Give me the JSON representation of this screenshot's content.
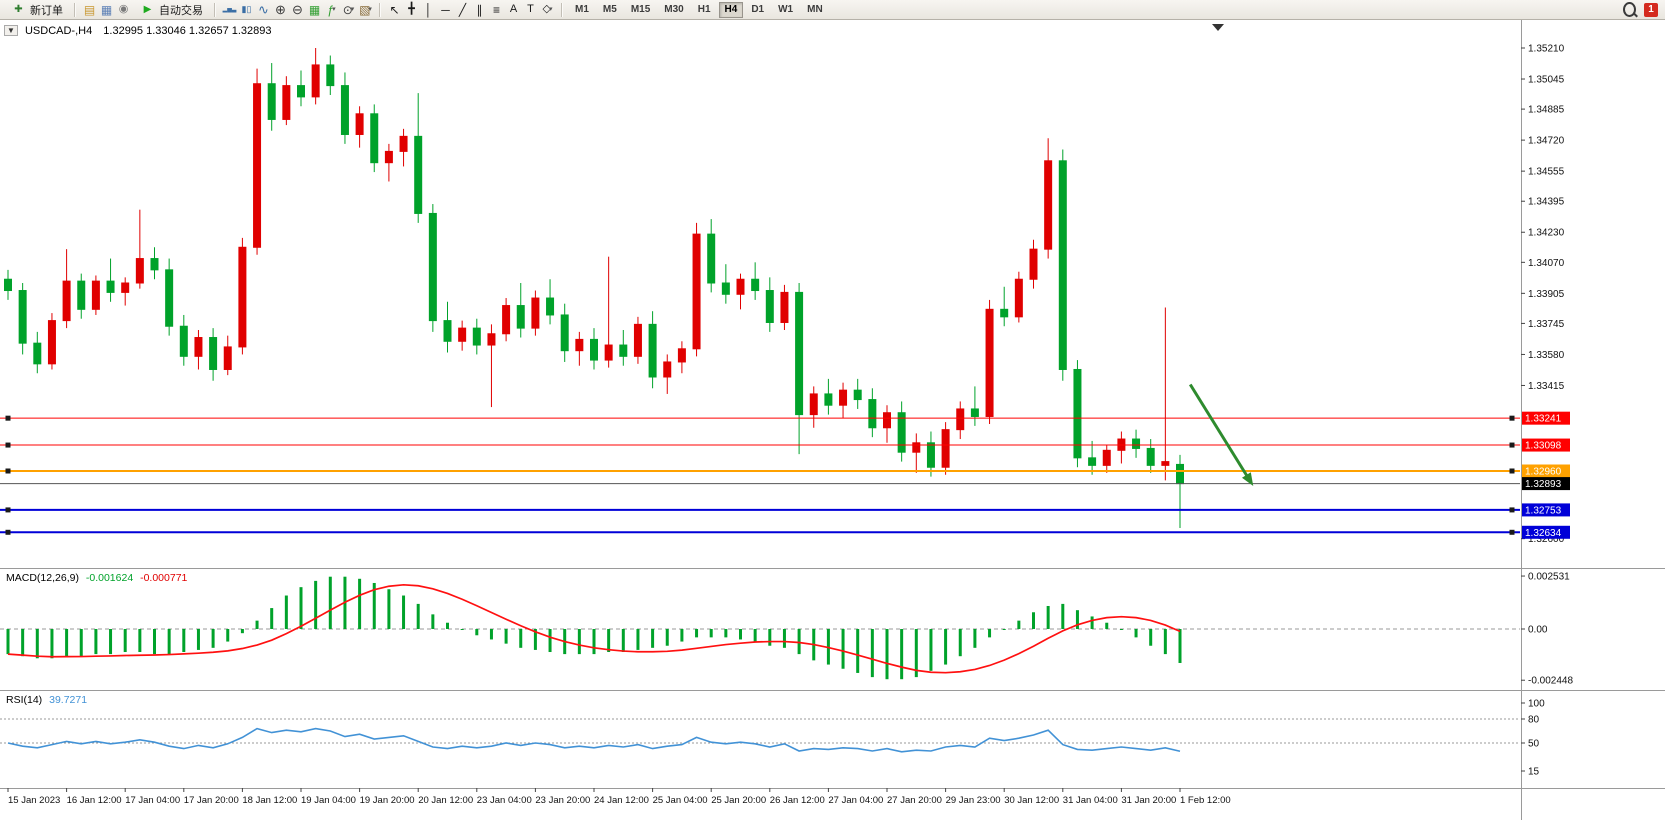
{
  "toolbar": {
    "new_order_label": "新订单",
    "autotrading_label": "自动交易",
    "collapse_glyph": "▼",
    "left_icons": [
      {
        "name": "new-chart-icon",
        "glyph": "▤",
        "color": "#c8962e",
        "size": 12
      },
      {
        "name": "profiles-icon",
        "glyph": "▦",
        "color": "#5b7fb5",
        "size": 12
      },
      {
        "name": "signals-icon",
        "glyph": "◉",
        "color": "#7a7a7a",
        "size": 11
      }
    ],
    "autotrading_icon": {
      "name": "autotrading-icon",
      "glyph": "▶",
      "color": "#1faa1f",
      "size": 10
    },
    "chart_icons": [
      {
        "name": "bar-chart-icon",
        "glyph": "▂▅▃",
        "color": "#3a6ea5",
        "size": 6
      },
      {
        "name": "candlestick-chart-icon",
        "glyph": "▮▯",
        "color": "#3a6ea5",
        "size": 9
      },
      {
        "name": "line-chart-icon",
        "glyph": "∿",
        "color": "#3a6ea5",
        "size": 13
      },
      {
        "name": "zoom-in-icon",
        "glyph": "⊕",
        "color": "#3c3c3c",
        "size": 13
      },
      {
        "name": "zoom-out-icon",
        "glyph": "⊖",
        "color": "#3c3c3c",
        "size": 13
      },
      {
        "name": "tile-windows-icon",
        "glyph": "▦",
        "color": "#2f9e2f",
        "size": 12
      },
      {
        "name": "indicators-icon",
        "glyph": "ƒ",
        "color": "#2f9e2f",
        "size": 12,
        "caret": true
      },
      {
        "name": "periods-icon",
        "glyph": "⊙",
        "color": "#3c3c3c",
        "size": 12,
        "caret": true
      },
      {
        "name": "templates-icon",
        "glyph": "▧",
        "color": "#8a6d3b",
        "size": 12,
        "caret": true
      }
    ],
    "draw_icons": [
      {
        "name": "cursor-icon",
        "glyph": "↖",
        "color": "#1a1a1a",
        "size": 12
      },
      {
        "name": "crosshair-icon",
        "glyph": "╋",
        "color": "#1a1a1a",
        "size": 11
      },
      {
        "name": "vertical-line-icon",
        "glyph": "│",
        "color": "#1a1a1a",
        "size": 12
      },
      {
        "name": "horizontal-line-icon",
        "glyph": "─",
        "color": "#1a1a1a",
        "size": 12
      },
      {
        "name": "trendline-icon",
        "glyph": "╱",
        "color": "#1a1a1a",
        "size": 12
      },
      {
        "name": "equidistant-channel-icon",
        "glyph": "∥",
        "color": "#1a1a1a",
        "size": 12
      },
      {
        "name": "fibonacci-icon",
        "glyph": "≡",
        "color": "#1a1a1a",
        "size": 12
      },
      {
        "name": "text-icon",
        "glyph": "A",
        "color": "#1a1a1a",
        "size": 11
      },
      {
        "name": "text-label-icon",
        "glyph": "T",
        "color": "#1a1a1a",
        "size": 11
      },
      {
        "name": "shapes-icon",
        "glyph": "◇",
        "color": "#1a1a1a",
        "size": 11,
        "caret": true
      }
    ],
    "timeframes": [
      "M1",
      "M5",
      "M15",
      "M30",
      "H1",
      "H4",
      "D1",
      "W1",
      "MN"
    ],
    "active_timeframe": "H4",
    "notification_count": "1"
  },
  "chart": {
    "symbol_period": "USDCAD-,H4",
    "ohlc_text": "1.32995 1.33046 1.32657 1.32893",
    "price_axis_labels": [
      {
        "text": "1.35210",
        "value": 1.3521
      },
      {
        "text": "1.35045",
        "value": 1.35045
      },
      {
        "text": "1.34885",
        "value": 1.34885
      },
      {
        "text": "1.34720",
        "value": 1.3472
      },
      {
        "text": "1.34555",
        "value": 1.34555
      },
      {
        "text": "1.34395",
        "value": 1.34395
      },
      {
        "text": "1.34230",
        "value": 1.3423
      },
      {
        "text": "1.34070",
        "value": 1.3407
      },
      {
        "text": "1.33905",
        "value": 1.33905
      },
      {
        "text": "1.33745",
        "value": 1.33745
      },
      {
        "text": "1.33580",
        "value": 1.3358
      },
      {
        "text": "1.33415",
        "value": 1.33415
      },
      {
        "text": "1.32600",
        "value": 1.326
      }
    ],
    "hlines": [
      {
        "label": "1.33241",
        "value": 1.33241,
        "color": "#ff0000",
        "width": 1
      },
      {
        "label": "1.33098",
        "value": 1.33098,
        "color": "#ff0000",
        "width": 1
      },
      {
        "label": "1.32960",
        "value": 1.3296,
        "color": "#ffa100",
        "width": 2
      },
      {
        "label": "1.32753",
        "value": 1.32753,
        "color": "#0000d8",
        "width": 2
      },
      {
        "label": "1.32634",
        "value": 1.32634,
        "color": "#0000d8",
        "width": 2
      }
    ],
    "price_marker": {
      "label": "1.32893",
      "value": 1.32893,
      "line_color": "#555555",
      "badge_color": "#000000"
    },
    "arrow": {
      "from_bar": 80.7,
      "from_price": 1.3342,
      "to_bar": 85.0,
      "to_price": 1.3288,
      "color": "#2e8b2e"
    },
    "time_labels": [
      {
        "text": "15 Jan 2023",
        "bar": 0
      },
      {
        "text": "16 Jan 12:00",
        "bar": 4
      },
      {
        "text": "17 Jan 04:00",
        "bar": 8
      },
      {
        "text": "17 Jan 20:00",
        "bar": 12
      },
      {
        "text": "18 Jan 12:00",
        "bar": 16
      },
      {
        "text": "19 Jan 04:00",
        "bar": 20
      },
      {
        "text": "19 Jan 20:00",
        "bar": 24
      },
      {
        "text": "20 Jan 12:00",
        "bar": 28
      },
      {
        "text": "23 Jan 04:00",
        "bar": 32
      },
      {
        "text": "23 Jan 20:00",
        "bar": 36
      },
      {
        "text": "24 Jan 12:00",
        "bar": 40
      },
      {
        "text": "25 Jan 04:00",
        "bar": 44
      },
      {
        "text": "25 Jan 20:00",
        "bar": 48
      },
      {
        "text": "26 Jan 12:00",
        "bar": 52
      },
      {
        "text": "27 Jan 04:00",
        "bar": 56
      },
      {
        "text": "27 Jan 20:00",
        "bar": 60
      },
      {
        "text": "29 Jan 23:00",
        "bar": 64
      },
      {
        "text": "30 Jan 12:00",
        "bar": 68
      },
      {
        "text": "31 Jan 04:00",
        "bar": 72
      },
      {
        "text": "31 Jan 20:00",
        "bar": 76
      },
      {
        "text": "1 Feb 12:00",
        "bar": 80
      }
    ],
    "colors": {
      "bull": "#e00000",
      "bear": "#00a22a"
    }
  },
  "chart_data": {
    "type": "candlestick",
    "symbol": "USDCAD-",
    "timeframe": "H4",
    "candles": [
      [
        1.3398,
        1.3403,
        1.3387,
        1.3392
      ],
      [
        1.3392,
        1.3396,
        1.3358,
        1.3364
      ],
      [
        1.3364,
        1.337,
        1.3348,
        1.3353
      ],
      [
        1.3353,
        1.338,
        1.335,
        1.3376
      ],
      [
        1.3376,
        1.3414,
        1.3372,
        1.3397
      ],
      [
        1.3397,
        1.3401,
        1.3377,
        1.3382
      ],
      [
        1.3382,
        1.34,
        1.3379,
        1.3397
      ],
      [
        1.3397,
        1.3409,
        1.3386,
        1.3391
      ],
      [
        1.3391,
        1.3399,
        1.3384,
        1.3396
      ],
      [
        1.3396,
        1.3435,
        1.3393,
        1.3409
      ],
      [
        1.3409,
        1.3415,
        1.3398,
        1.3403
      ],
      [
        1.3403,
        1.3409,
        1.3368,
        1.3373
      ],
      [
        1.3373,
        1.3379,
        1.3352,
        1.3357
      ],
      [
        1.3357,
        1.3371,
        1.335,
        1.3367
      ],
      [
        1.3367,
        1.3372,
        1.3344,
        1.335
      ],
      [
        1.335,
        1.3368,
        1.3347,
        1.3362
      ],
      [
        1.3362,
        1.342,
        1.3358,
        1.3415
      ],
      [
        1.3415,
        1.351,
        1.3411,
        1.3502
      ],
      [
        1.3502,
        1.3513,
        1.3477,
        1.3483
      ],
      [
        1.3483,
        1.3506,
        1.348,
        1.3501
      ],
      [
        1.3501,
        1.3509,
        1.349,
        1.3495
      ],
      [
        1.3495,
        1.3521,
        1.3491,
        1.3512
      ],
      [
        1.3512,
        1.3517,
        1.3496,
        1.3501
      ],
      [
        1.3501,
        1.3508,
        1.347,
        1.3475
      ],
      [
        1.3475,
        1.349,
        1.3468,
        1.3486
      ],
      [
        1.3486,
        1.3491,
        1.3455,
        1.346
      ],
      [
        1.346,
        1.347,
        1.345,
        1.3466
      ],
      [
        1.3466,
        1.3478,
        1.3458,
        1.3474
      ],
      [
        1.3474,
        1.3497,
        1.3428,
        1.3433
      ],
      [
        1.3433,
        1.3438,
        1.337,
        1.3376
      ],
      [
        1.3376,
        1.3386,
        1.3359,
        1.3365
      ],
      [
        1.3365,
        1.3376,
        1.336,
        1.3372
      ],
      [
        1.3372,
        1.3377,
        1.3358,
        1.3363
      ],
      [
        1.3363,
        1.3374,
        1.333,
        1.3369
      ],
      [
        1.3369,
        1.3388,
        1.3365,
        1.3384
      ],
      [
        1.3384,
        1.3396,
        1.3367,
        1.3372
      ],
      [
        1.3372,
        1.3392,
        1.3368,
        1.3388
      ],
      [
        1.3388,
        1.3398,
        1.3374,
        1.3379
      ],
      [
        1.3379,
        1.3385,
        1.3354,
        1.336
      ],
      [
        1.336,
        1.337,
        1.3352,
        1.3366
      ],
      [
        1.3366,
        1.3372,
        1.335,
        1.3355
      ],
      [
        1.3355,
        1.341,
        1.3351,
        1.3363
      ],
      [
        1.3363,
        1.3371,
        1.3352,
        1.3357
      ],
      [
        1.3357,
        1.3378,
        1.3353,
        1.3374
      ],
      [
        1.3374,
        1.3381,
        1.334,
        1.3346
      ],
      [
        1.3346,
        1.3358,
        1.3337,
        1.3354
      ],
      [
        1.3354,
        1.3365,
        1.3348,
        1.3361
      ],
      [
        1.3361,
        1.3428,
        1.3357,
        1.3422
      ],
      [
        1.3422,
        1.343,
        1.3391,
        1.3396
      ],
      [
        1.3396,
        1.3406,
        1.3385,
        1.339
      ],
      [
        1.339,
        1.3401,
        1.3382,
        1.3398
      ],
      [
        1.3398,
        1.3407,
        1.3387,
        1.3392
      ],
      [
        1.3392,
        1.3399,
        1.337,
        1.3375
      ],
      [
        1.3375,
        1.3395,
        1.3371,
        1.3391
      ],
      [
        1.3391,
        1.3396,
        1.3305,
        1.3326
      ],
      [
        1.3326,
        1.3341,
        1.3319,
        1.3337
      ],
      [
        1.3337,
        1.3345,
        1.3326,
        1.3331
      ],
      [
        1.3331,
        1.3343,
        1.3324,
        1.3339
      ],
      [
        1.3339,
        1.3345,
        1.3329,
        1.3334
      ],
      [
        1.3334,
        1.334,
        1.3314,
        1.3319
      ],
      [
        1.3319,
        1.3331,
        1.3311,
        1.3327
      ],
      [
        1.3327,
        1.3333,
        1.3301,
        1.3306
      ],
      [
        1.3306,
        1.3316,
        1.3295,
        1.3311
      ],
      [
        1.3311,
        1.3317,
        1.3293,
        1.3298
      ],
      [
        1.3298,
        1.3322,
        1.3294,
        1.3318
      ],
      [
        1.3318,
        1.3333,
        1.3313,
        1.3329
      ],
      [
        1.3329,
        1.3341,
        1.332,
        1.3325
      ],
      [
        1.3325,
        1.3387,
        1.3321,
        1.3382
      ],
      [
        1.3382,
        1.3394,
        1.3373,
        1.3378
      ],
      [
        1.3378,
        1.3402,
        1.3375,
        1.3398
      ],
      [
        1.3398,
        1.3419,
        1.3393,
        1.3414
      ],
      [
        1.3414,
        1.3473,
        1.3409,
        1.3461
      ],
      [
        1.3461,
        1.3467,
        1.3344,
        1.335
      ],
      [
        1.335,
        1.3355,
        1.3298,
        1.3303
      ],
      [
        1.3303,
        1.3312,
        1.3294,
        1.3299
      ],
      [
        1.3299,
        1.331,
        1.3295,
        1.3307
      ],
      [
        1.3307,
        1.3317,
        1.33,
        1.3313
      ],
      [
        1.3313,
        1.3318,
        1.3303,
        1.3308
      ],
      [
        1.3308,
        1.3313,
        1.3295,
        1.3299
      ],
      [
        1.3299,
        1.3383,
        1.3291,
        1.3301
      ],
      [
        1.32995,
        1.33046,
        1.32657,
        1.32893
      ]
    ],
    "macd": {
      "label": "MACD(12,26,9)",
      "main_value": "-0.001624",
      "signal_value": "-0.000771",
      "scale_labels": [
        {
          "text": "0.002531",
          "value": 0.002531
        },
        {
          "text": "0.00",
          "value": 0
        },
        {
          "text": "-0.002448",
          "value": -0.002448
        }
      ],
      "histogram": [
        -0.0012,
        -0.0013,
        -0.0014,
        -0.0014,
        -0.0013,
        -0.0013,
        -0.0012,
        -0.0012,
        -0.0011,
        -0.0011,
        -0.0012,
        -0.0012,
        -0.0011,
        -0.001,
        -0.0009,
        -0.0006,
        -0.0002,
        0.0004,
        0.001,
        0.0016,
        0.002,
        0.0023,
        0.0025,
        0.0025,
        0.0024,
        0.0022,
        0.0019,
        0.0016,
        0.0012,
        0.0007,
        0.0003,
        0.0,
        -0.0003,
        -0.0005,
        -0.0007,
        -0.0009,
        -0.001,
        -0.0011,
        -0.0012,
        -0.0012,
        -0.0012,
        -0.0011,
        -0.0011,
        -0.001,
        -0.0009,
        -0.0008,
        -0.0006,
        -0.0004,
        -0.0004,
        -0.0004,
        -0.0005,
        -0.0006,
        -0.0008,
        -0.0009,
        -0.0012,
        -0.0015,
        -0.0017,
        -0.0019,
        -0.0021,
        -0.0023,
        -0.0024,
        -0.0024,
        -0.0023,
        -0.002,
        -0.0017,
        -0.0013,
        -0.0009,
        -0.0004,
        0.0,
        0.0004,
        0.0008,
        0.0011,
        0.0012,
        0.0009,
        0.0006,
        0.0003,
        0.0,
        -0.0004,
        -0.0008,
        -0.0012,
        -0.001624
      ],
      "hist_color": "#00a22a",
      "signal_color": "#ff1010"
    },
    "rsi": {
      "label": "RSI(14)",
      "value": "39.7271",
      "scale_labels": [
        {
          "text": "100",
          "value": 100
        },
        {
          "text": "80",
          "value": 80
        },
        {
          "text": "50",
          "value": 50
        },
        {
          "text": "15",
          "value": 15
        }
      ],
      "levels": [
        80,
        50
      ],
      "values": [
        50,
        46,
        44,
        48,
        52,
        49,
        52,
        49,
        51,
        54,
        51,
        46,
        43,
        47,
        44,
        49,
        57,
        68,
        63,
        66,
        64,
        68,
        65,
        58,
        61,
        55,
        57,
        59,
        52,
        45,
        43,
        46,
        44,
        46,
        50,
        47,
        50,
        48,
        44,
        46,
        44,
        47,
        45,
        48,
        43,
        46,
        48,
        57,
        51,
        49,
        51,
        49,
        45,
        49,
        40,
        43,
        42,
        44,
        43,
        40,
        43,
        39,
        41,
        40,
        45,
        47,
        45,
        56,
        53,
        56,
        60,
        66,
        48,
        42,
        41,
        43,
        45,
        43,
        41,
        44,
        39.7
      ],
      "line_color": "#4292d6"
    }
  }
}
